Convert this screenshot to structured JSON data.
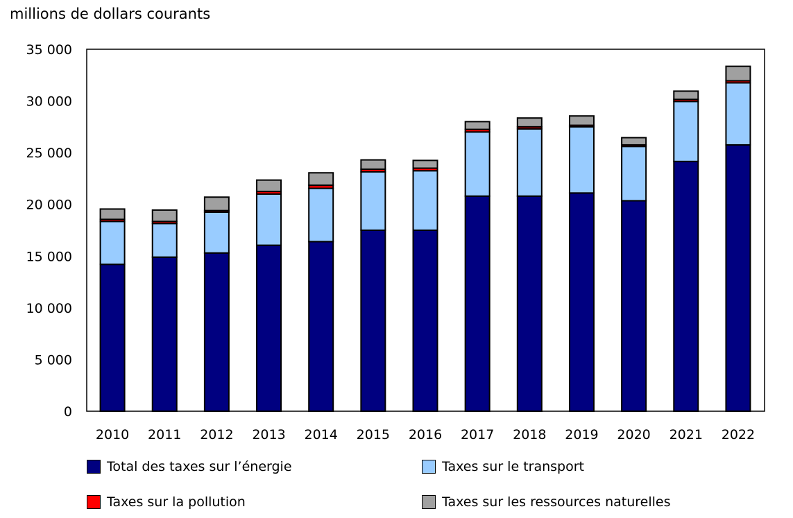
{
  "chart_data": {
    "type": "bar",
    "stacked": true,
    "ylabel": "millions de dollars courants",
    "ylim": [
      0,
      35000
    ],
    "yticks": [
      "0",
      "5 000",
      "10 000",
      "15 000",
      "20 000",
      "25 000",
      "30 000",
      "35 000"
    ],
    "categories": [
      "2010",
      "2011",
      "2012",
      "2013",
      "2014",
      "2015",
      "2016",
      "2017",
      "2018",
      "2019",
      "2020",
      "2021",
      "2022"
    ],
    "series": [
      {
        "name": "Total des taxes sur l’énergie",
        "color": "#000080",
        "values": [
          14200,
          14900,
          15300,
          16050,
          16400,
          17500,
          17500,
          20800,
          20800,
          21100,
          20350,
          24150,
          25750
        ]
      },
      {
        "name": "Taxes sur le transport",
        "color": "#99ccff",
        "values": [
          4150,
          3250,
          3950,
          4950,
          5150,
          5650,
          5750,
          6200,
          6500,
          6400,
          5250,
          5800,
          6000
        ]
      },
      {
        "name": "Taxes sur la pollution",
        "color": "#ff0000",
        "values": [
          200,
          200,
          150,
          250,
          300,
          250,
          250,
          250,
          200,
          150,
          150,
          200,
          200
        ]
      },
      {
        "name": "Taxes sur les ressources naturelles",
        "color": "#a0a0a0",
        "values": [
          1000,
          1100,
          1300,
          1100,
          1200,
          900,
          750,
          750,
          850,
          900,
          700,
          800,
          1400
        ]
      }
    ],
    "grid": false,
    "legend": "bottom"
  }
}
